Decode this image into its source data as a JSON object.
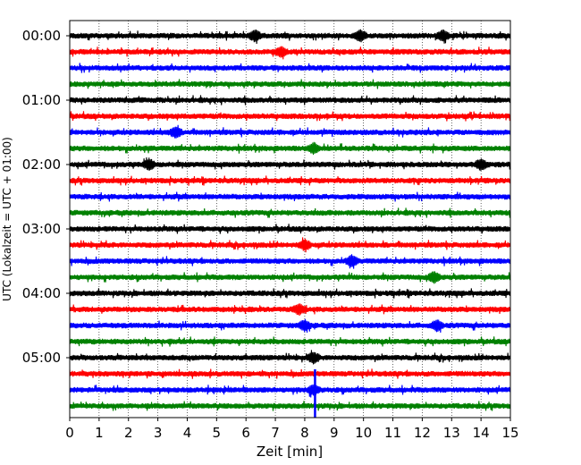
{
  "chart_data": {
    "type": "line",
    "title": "",
    "xlabel": "Zeit  [min]",
    "ylabel": "UTC (Lokalzeit = UTC + 01:00)",
    "xlim": [
      0,
      15
    ],
    "x_ticks": [
      "0",
      "1",
      "2",
      "3",
      "4",
      "5",
      "6",
      "7",
      "8",
      "9",
      "10",
      "11",
      "12",
      "13",
      "14",
      "15"
    ],
    "y_ticks": [
      {
        "row": 0,
        "label": "00:00"
      },
      {
        "row": 4,
        "label": "01:00"
      },
      {
        "row": 8,
        "label": "02:00"
      },
      {
        "row": 12,
        "label": "03:00"
      },
      {
        "row": 16,
        "label": "04:00"
      },
      {
        "row": 20,
        "label": "05:00"
      }
    ],
    "grid": "vertical dotted",
    "row_count": 24,
    "row_duration_min": 15,
    "color_cycle": [
      "#000000",
      "#ff0000",
      "#0000ff",
      "#008000"
    ],
    "bursts": [
      {
        "row": 0,
        "minute": 6.3
      },
      {
        "row": 0,
        "minute": 9.9
      },
      {
        "row": 0,
        "minute": 12.7
      },
      {
        "row": 1,
        "minute": 7.2
      },
      {
        "row": 6,
        "minute": 3.6
      },
      {
        "row": 7,
        "minute": 8.3
      },
      {
        "row": 8,
        "minute": 2.7
      },
      {
        "row": 8,
        "minute": 14.0
      },
      {
        "row": 13,
        "minute": 8.0
      },
      {
        "row": 14,
        "minute": 9.6
      },
      {
        "row": 15,
        "minute": 12.4
      },
      {
        "row": 17,
        "minute": 7.8
      },
      {
        "row": 18,
        "minute": 8.0
      },
      {
        "row": 18,
        "minute": 12.5
      },
      {
        "row": 20,
        "minute": 8.3
      },
      {
        "row": 22,
        "minute": 8.3
      }
    ],
    "spike": {
      "row": 22,
      "minute": 8.35
    }
  }
}
